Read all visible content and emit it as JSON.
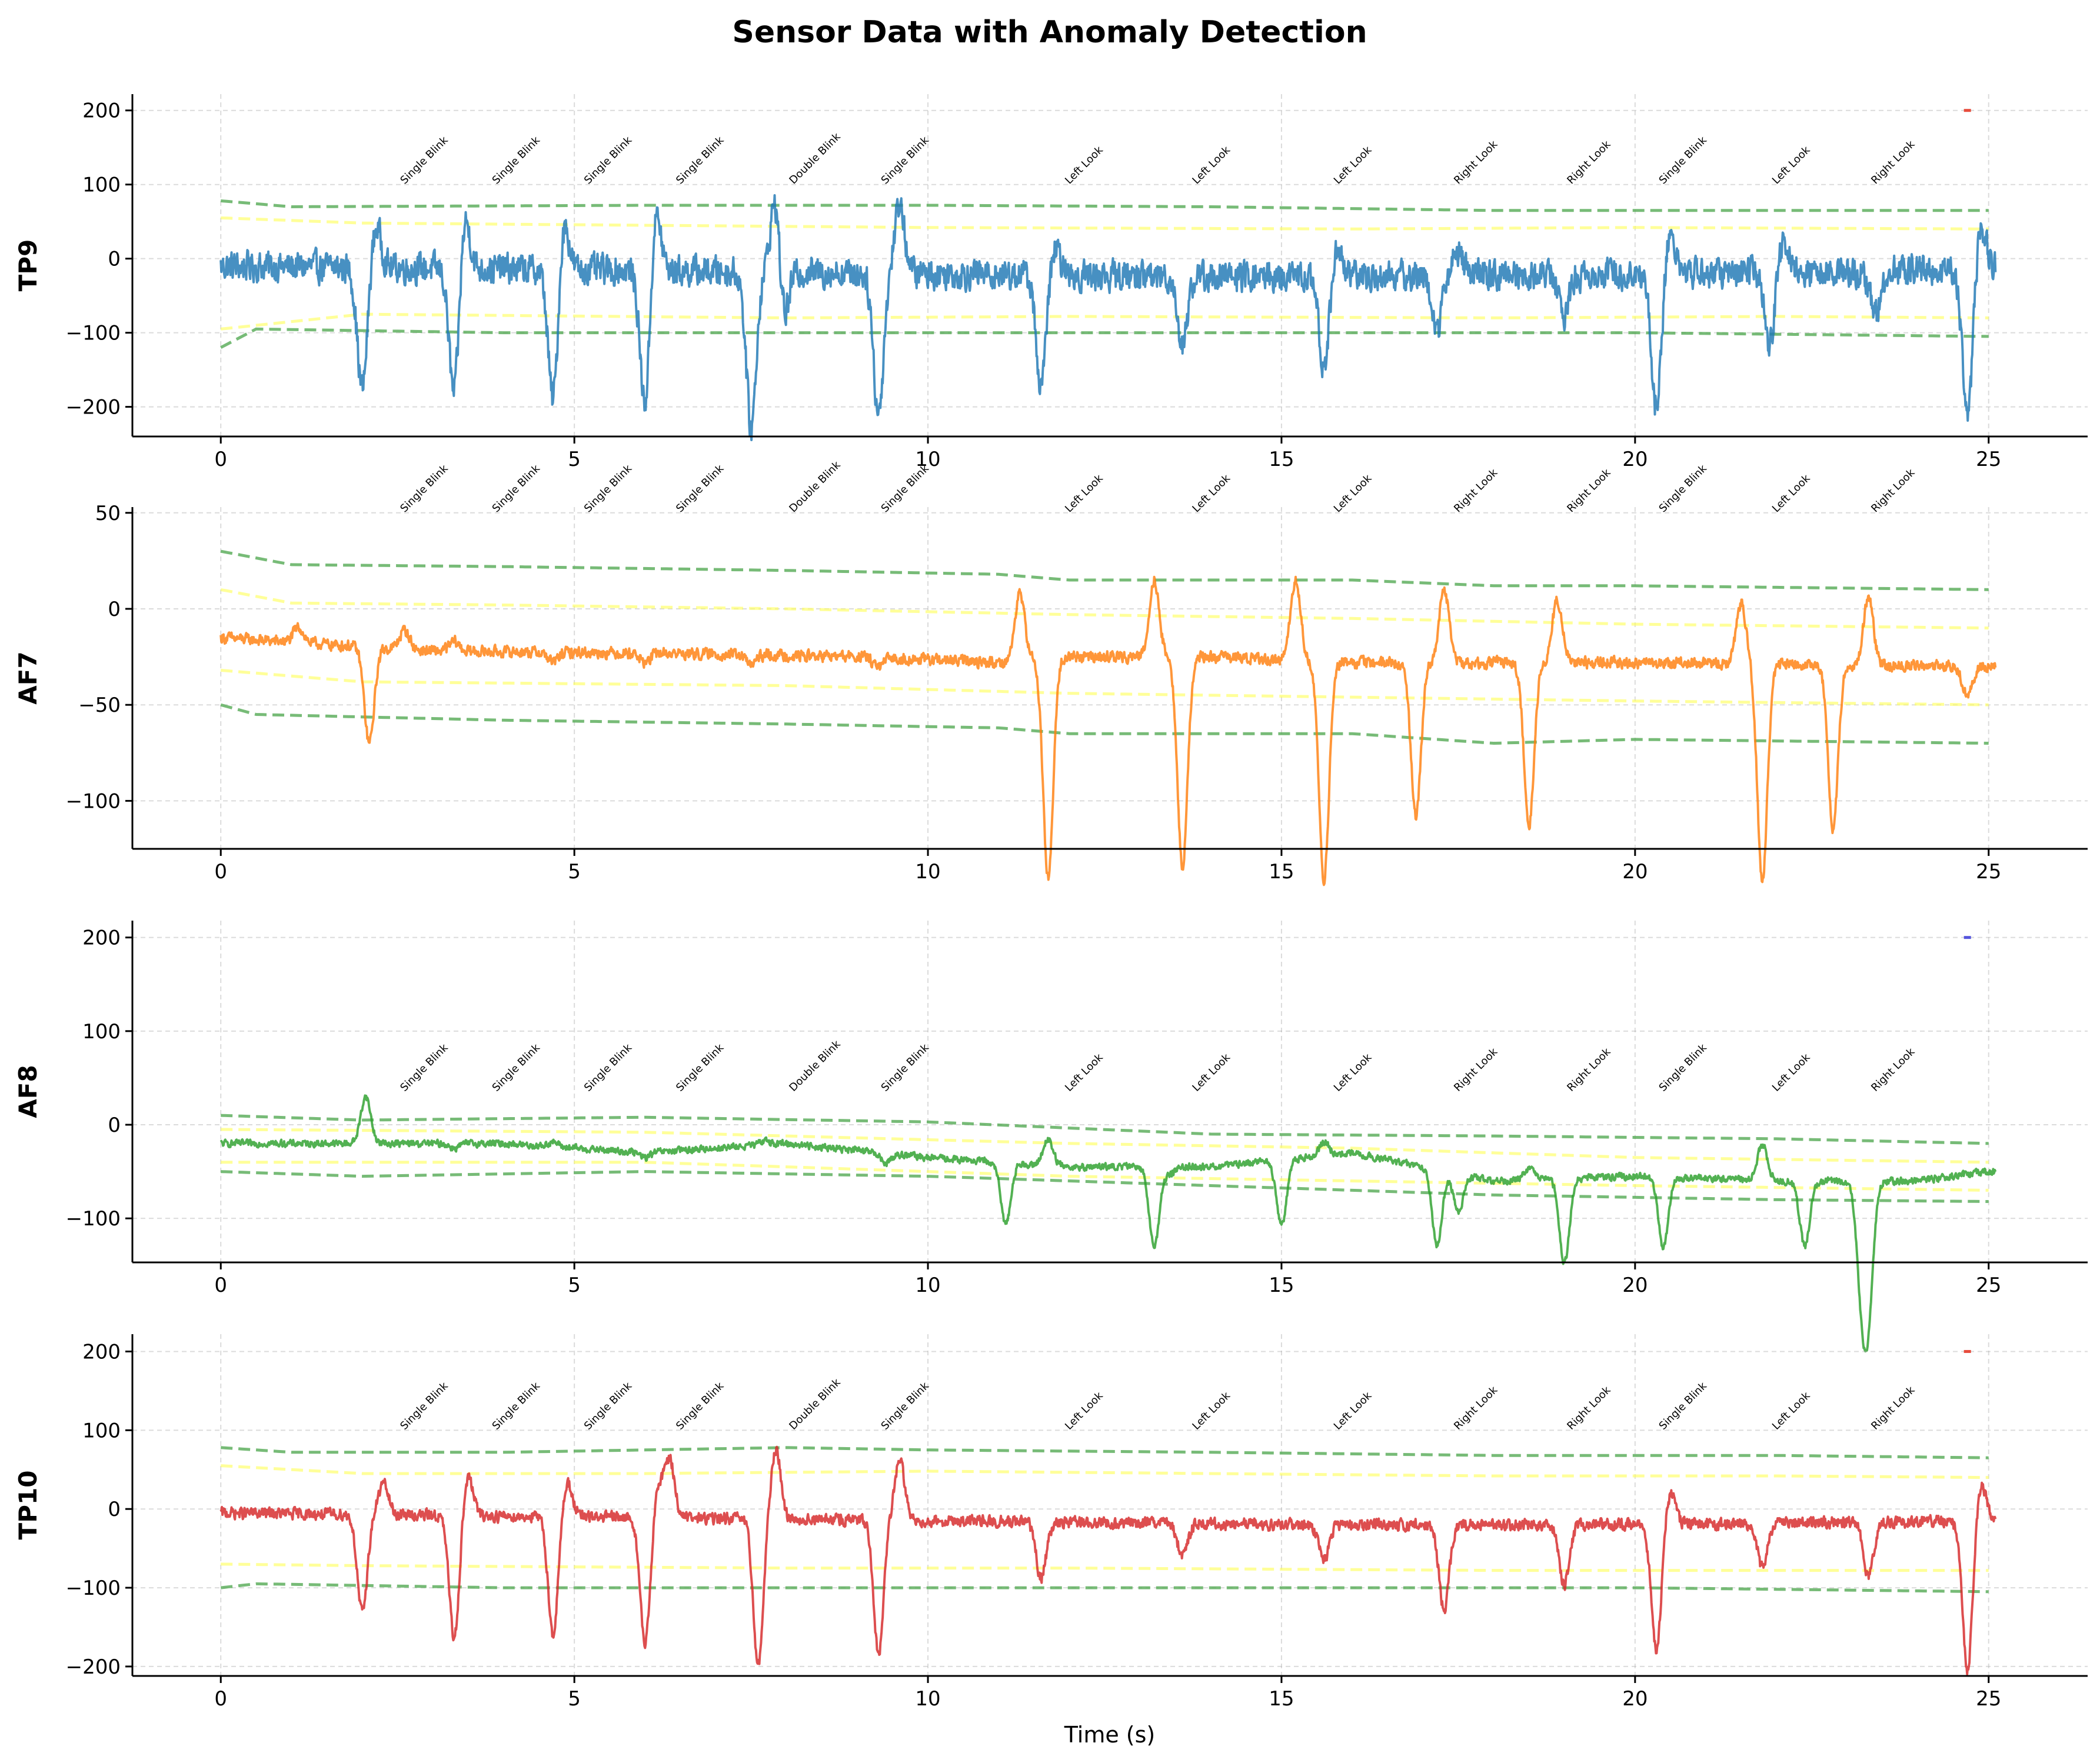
{
  "chart_data": {
    "type": "line",
    "title": "Sensor Data with Anomaly Detection",
    "xlabel": "Time (s)",
    "xlim": [
      -1.25,
      26.4
    ],
    "xticks": [
      0,
      5,
      10,
      15,
      20,
      25
    ],
    "grid": true,
    "band_colors": {
      "inner": "#ffff55",
      "outer": "#55aa55"
    },
    "events": [
      {
        "t": 2.6,
        "label": "Single Blink"
      },
      {
        "t": 3.9,
        "label": "Single Blink"
      },
      {
        "t": 5.2,
        "label": "Single Blink"
      },
      {
        "t": 6.5,
        "label": "Single Blink"
      },
      {
        "t": 8.1,
        "label": "Double Blink"
      },
      {
        "t": 9.4,
        "label": "Single Blink"
      },
      {
        "t": 12.0,
        "label": "Left Look"
      },
      {
        "t": 13.8,
        "label": "Left Look"
      },
      {
        "t": 15.8,
        "label": "Left Look"
      },
      {
        "t": 17.5,
        "label": "Right Look"
      },
      {
        "t": 19.1,
        "label": "Right Look"
      },
      {
        "t": 20.4,
        "label": "Single Blink"
      },
      {
        "t": 22.0,
        "label": "Left Look"
      },
      {
        "t": 23.4,
        "label": "Right Look"
      }
    ],
    "panels": [
      {
        "name": "TP9",
        "color": "#1f77b4",
        "ylim": [
          -240,
          222
        ],
        "yticks": [
          -200,
          -100,
          0,
          100,
          200
        ],
        "baseline": [
          [
            0,
            -10
          ],
          [
            5,
            -15
          ],
          [
            10,
            -20
          ],
          [
            15,
            -25
          ],
          [
            20,
            -20
          ],
          [
            25,
            -15
          ]
        ],
        "noise": 28,
        "spikes": [
          [
            2.0,
            -165
          ],
          [
            2.2,
            55
          ],
          [
            3.3,
            -175
          ],
          [
            3.45,
            75
          ],
          [
            4.7,
            -180
          ],
          [
            4.85,
            70
          ],
          [
            6.0,
            -185
          ],
          [
            6.15,
            85
          ],
          [
            7.5,
            -210
          ],
          [
            7.85,
            115
          ],
          [
            7.95,
            -80
          ],
          [
            9.3,
            -190
          ],
          [
            9.6,
            95
          ],
          [
            11.6,
            -150
          ],
          [
            11.8,
            35
          ],
          [
            13.6,
            -90
          ],
          [
            15.6,
            -120
          ],
          [
            15.8,
            40
          ],
          [
            17.2,
            -70
          ],
          [
            17.5,
            35
          ],
          [
            19.0,
            -55
          ],
          [
            20.3,
            -180
          ],
          [
            20.5,
            55
          ],
          [
            21.9,
            -100
          ],
          [
            22.1,
            40
          ],
          [
            23.4,
            -60
          ],
          [
            24.7,
            -200
          ],
          [
            24.9,
            60
          ]
        ],
        "bands": {
          "inner_upper": [
            [
              0,
              55
            ],
            [
              2,
              48
            ],
            [
              6,
              45
            ],
            [
              10,
              42
            ],
            [
              16,
              40
            ],
            [
              20,
              42
            ],
            [
              25,
              40
            ]
          ],
          "inner_lower": [
            [
              0,
              -95
            ],
            [
              2,
              -75
            ],
            [
              8,
              -80
            ],
            [
              12,
              -78
            ],
            [
              18,
              -80
            ],
            [
              22,
              -78
            ],
            [
              25,
              -80
            ]
          ],
          "outer_upper": [
            [
              0,
              78
            ],
            [
              1,
              70
            ],
            [
              6,
              72
            ],
            [
              10,
              72
            ],
            [
              14,
              70
            ],
            [
              18,
              65
            ],
            [
              22,
              65
            ],
            [
              25,
              65
            ]
          ],
          "outer_lower": [
            [
              0,
              -120
            ],
            [
              0.5,
              -95
            ],
            [
              4,
              -100
            ],
            [
              10,
              -100
            ],
            [
              16,
              -100
            ],
            [
              20,
              -100
            ],
            [
              25,
              -105
            ]
          ]
        },
        "anomaly": {
          "t": 24.7,
          "value": 200,
          "color": "#e74c3c"
        },
        "ann_value": 100
      },
      {
        "name": "AF7",
        "color": "#ff7f0e",
        "ylim": [
          -125,
          53
        ],
        "yticks": [
          -100,
          -50,
          0,
          50
        ],
        "baseline": [
          [
            0,
            -15
          ],
          [
            3,
            -22
          ],
          [
            6,
            -23
          ],
          [
            9,
            -25
          ],
          [
            11,
            -28
          ],
          [
            12,
            -25
          ],
          [
            14,
            -25
          ],
          [
            16,
            -28
          ],
          [
            20,
            -28
          ],
          [
            25,
            -30
          ]
        ],
        "noise": 4,
        "spikes": [
          [
            1.1,
            8
          ],
          [
            2.1,
            -50
          ],
          [
            2.6,
            10
          ],
          [
            3.3,
            5
          ],
          [
            4.7,
            -5
          ],
          [
            6.0,
            -5
          ],
          [
            7.5,
            -5
          ],
          [
            9.3,
            -5
          ],
          [
            11.3,
            35
          ],
          [
            11.7,
            -115
          ],
          [
            13.2,
            40
          ],
          [
            13.6,
            -110
          ],
          [
            15.2,
            42
          ],
          [
            15.6,
            -115
          ],
          [
            16.9,
            -80
          ],
          [
            17.3,
            38
          ],
          [
            18.5,
            -85
          ],
          [
            18.9,
            33
          ],
          [
            21.5,
            32
          ],
          [
            21.8,
            -112
          ],
          [
            22.8,
            -85
          ],
          [
            23.3,
            35
          ],
          [
            24.7,
            -15
          ]
        ],
        "bands": {
          "inner_upper": [
            [
              0,
              10
            ],
            [
              1,
              3
            ],
            [
              4,
              2
            ],
            [
              8,
              0
            ],
            [
              12,
              -3
            ],
            [
              16,
              -5
            ],
            [
              20,
              -8
            ],
            [
              25,
              -10
            ]
          ],
          "inner_lower": [
            [
              0,
              -32
            ],
            [
              2,
              -38
            ],
            [
              8,
              -40
            ],
            [
              12,
              -44
            ],
            [
              16,
              -46
            ],
            [
              20,
              -48
            ],
            [
              25,
              -50
            ]
          ],
          "outer_upper": [
            [
              0,
              30
            ],
            [
              1,
              23
            ],
            [
              4,
              22
            ],
            [
              8,
              20
            ],
            [
              11,
              18
            ],
            [
              12,
              15
            ],
            [
              16,
              15
            ],
            [
              18,
              12
            ],
            [
              20,
              12
            ],
            [
              25,
              10
            ]
          ],
          "outer_lower": [
            [
              0,
              -50
            ],
            [
              0.5,
              -55
            ],
            [
              4,
              -58
            ],
            [
              8,
              -60
            ],
            [
              11,
              -62
            ],
            [
              12,
              -65
            ],
            [
              16,
              -65
            ],
            [
              18,
              -70
            ],
            [
              20,
              -68
            ],
            [
              25,
              -70
            ]
          ]
        },
        "anomaly": null,
        "ann_value": 50
      },
      {
        "name": "AF8",
        "color": "#2ca02c",
        "ylim": [
          -147,
          218
        ],
        "yticks": [
          -100,
          0,
          100,
          200
        ],
        "baseline": [
          [
            0,
            -20
          ],
          [
            4,
            -20
          ],
          [
            6,
            -30
          ],
          [
            8,
            -20
          ],
          [
            10,
            -35
          ],
          [
            12,
            -45
          ],
          [
            14,
            -45
          ],
          [
            16,
            -30
          ],
          [
            18,
            -60
          ],
          [
            20,
            -55
          ],
          [
            22,
            -60
          ],
          [
            24,
            -60
          ],
          [
            25,
            -50
          ]
        ],
        "noise": 5,
        "spikes": [
          [
            2.05,
            50
          ],
          [
            3.3,
            -5
          ],
          [
            4.7,
            5
          ],
          [
            6.0,
            -5
          ],
          [
            7.7,
            5
          ],
          [
            9.4,
            -10
          ],
          [
            11.1,
            -65
          ],
          [
            11.7,
            28
          ],
          [
            13.2,
            -85
          ],
          [
            13.4,
            -8
          ],
          [
            15.0,
            -70
          ],
          [
            15.6,
            15
          ],
          [
            17.2,
            -80
          ],
          [
            17.5,
            -40
          ],
          [
            18.5,
            12
          ],
          [
            19.0,
            -90
          ],
          [
            20.4,
            -75
          ],
          [
            21.8,
            38
          ],
          [
            22.4,
            -70
          ],
          [
            23.2,
            -105
          ],
          [
            23.3,
            -130
          ]
        ],
        "bands": {
          "inner_upper": [
            [
              0,
              -5
            ],
            [
              6,
              -8
            ],
            [
              12,
              -20
            ],
            [
              16,
              -25
            ],
            [
              20,
              -35
            ],
            [
              25,
              -40
            ]
          ],
          "inner_lower": [
            [
              0,
              -40
            ],
            [
              6,
              -40
            ],
            [
              12,
              -55
            ],
            [
              16,
              -60
            ],
            [
              20,
              -65
            ],
            [
              25,
              -70
            ]
          ],
          "outer_upper": [
            [
              0,
              10
            ],
            [
              2,
              5
            ],
            [
              6,
              8
            ],
            [
              10,
              3
            ],
            [
              14,
              -10
            ],
            [
              18,
              -12
            ],
            [
              22,
              -15
            ],
            [
              25,
              -20
            ]
          ],
          "outer_lower": [
            [
              0,
              -50
            ],
            [
              2,
              -55
            ],
            [
              6,
              -50
            ],
            [
              10,
              -55
            ],
            [
              14,
              -65
            ],
            [
              18,
              -75
            ],
            [
              22,
              -80
            ],
            [
              25,
              -82
            ]
          ]
        },
        "anomaly": {
          "t": 24.7,
          "value": 200,
          "color": "#5555dd"
        },
        "ann_value": 35
      },
      {
        "name": "TP10",
        "color": "#d62728",
        "ylim": [
          -212,
          222
        ],
        "yticks": [
          -200,
          -100,
          0,
          100,
          200
        ],
        "baseline": [
          [
            0,
            -5
          ],
          [
            5,
            -10
          ],
          [
            10,
            -15
          ],
          [
            15,
            -20
          ],
          [
            20,
            -20
          ],
          [
            25,
            -15
          ]
        ],
        "noise": 10,
        "spikes": [
          [
            2.0,
            -125
          ],
          [
            2.3,
            40
          ],
          [
            3.3,
            -155
          ],
          [
            3.5,
            50
          ],
          [
            4.7,
            -150
          ],
          [
            4.9,
            45
          ],
          [
            6.0,
            -160
          ],
          [
            6.2,
            40
          ],
          [
            6.35,
            72
          ],
          [
            7.6,
            -185
          ],
          [
            7.85,
            88
          ],
          [
            9.3,
            -170
          ],
          [
            9.6,
            78
          ],
          [
            11.6,
            -70
          ],
          [
            13.6,
            -40
          ],
          [
            15.6,
            -45
          ],
          [
            17.3,
            -110
          ],
          [
            19.0,
            -75
          ],
          [
            20.3,
            -160
          ],
          [
            20.5,
            40
          ],
          [
            21.8,
            -55
          ],
          [
            23.3,
            -70
          ],
          [
            24.7,
            -190
          ],
          [
            24.9,
            45
          ]
        ],
        "bands": {
          "inner_upper": [
            [
              0,
              55
            ],
            [
              2,
              45
            ],
            [
              6,
              45
            ],
            [
              10,
              48
            ],
            [
              14,
              45
            ],
            [
              18,
              42
            ],
            [
              22,
              42
            ],
            [
              25,
              40
            ]
          ],
          "inner_lower": [
            [
              0,
              -70
            ],
            [
              2,
              -72
            ],
            [
              8,
              -75
            ],
            [
              12,
              -75
            ],
            [
              18,
              -78
            ],
            [
              22,
              -78
            ],
            [
              25,
              -78
            ]
          ],
          "outer_upper": [
            [
              0,
              78
            ],
            [
              1,
              72
            ],
            [
              4,
              72
            ],
            [
              8,
              78
            ],
            [
              10,
              75
            ],
            [
              14,
              72
            ],
            [
              18,
              68
            ],
            [
              22,
              68
            ],
            [
              25,
              65
            ]
          ],
          "outer_lower": [
            [
              0,
              -100
            ],
            [
              0.5,
              -95
            ],
            [
              4,
              -100
            ],
            [
              8,
              -100
            ],
            [
              12,
              -100
            ],
            [
              16,
              -100
            ],
            [
              20,
              -100
            ],
            [
              25,
              -105
            ]
          ]
        },
        "anomaly": {
          "t": 24.7,
          "value": 200,
          "color": "#e74c3c"
        },
        "ann_value": 100
      }
    ]
  }
}
